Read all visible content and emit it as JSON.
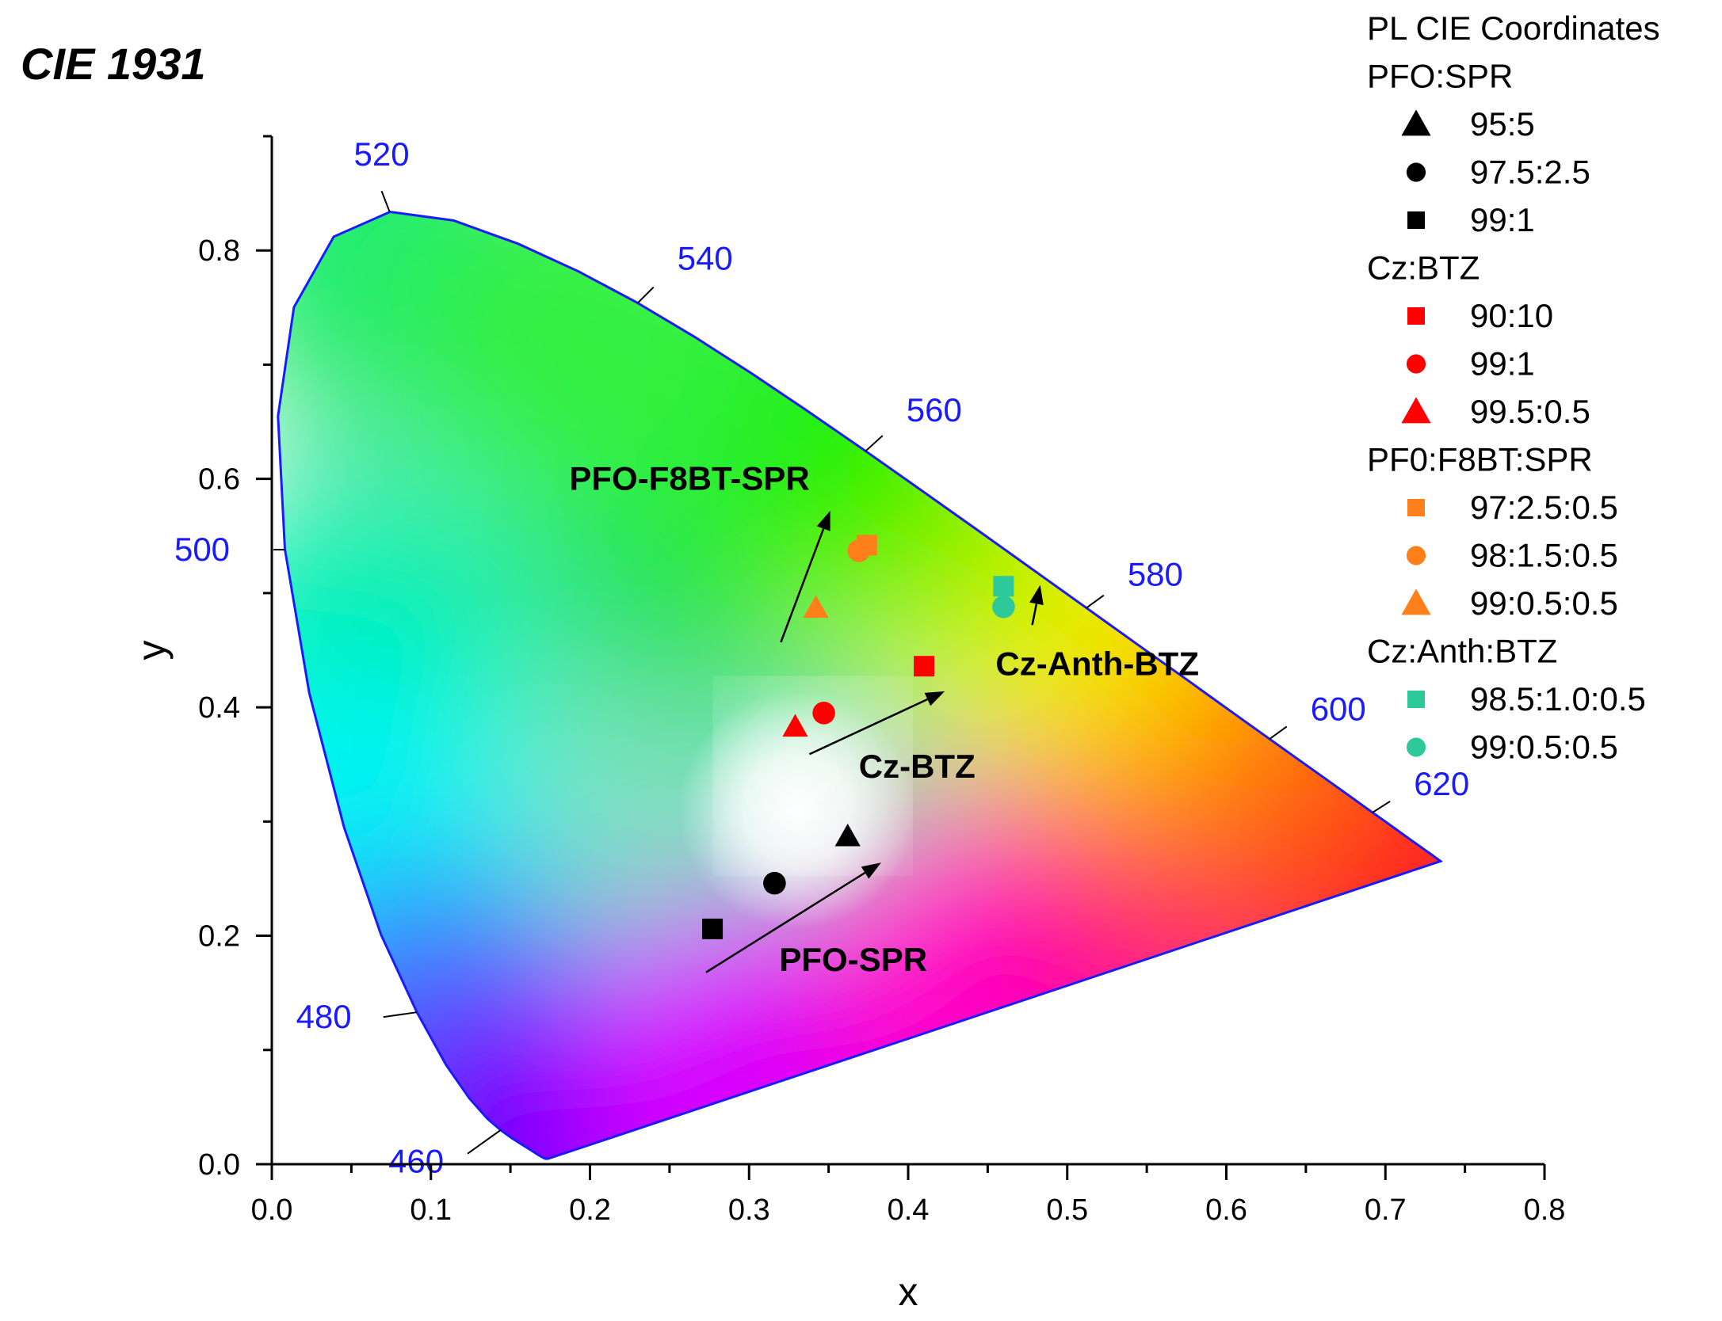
{
  "chart_data": {
    "type": "scatter",
    "title": "CIE 1931",
    "xlabel": "x",
    "ylabel": "y",
    "xlim": [
      0.0,
      0.8
    ],
    "ylim": [
      0.0,
      0.9
    ],
    "x_ticks": [
      "0.0",
      "0.1",
      "0.2",
      "0.3",
      "0.4",
      "0.5",
      "0.6",
      "0.7",
      "0.8"
    ],
    "y_ticks": [
      "0.0",
      "0.2",
      "0.4",
      "0.6",
      "0.8"
    ],
    "wavelength_labels": [
      {
        "label": "460",
        "x": 0.144,
        "y": 0.03
      },
      {
        "label": "480",
        "x": 0.091,
        "y": 0.133
      },
      {
        "label": "500",
        "x": 0.008,
        "y": 0.538
      },
      {
        "label": "520",
        "x": 0.074,
        "y": 0.834
      },
      {
        "label": "540",
        "x": 0.23,
        "y": 0.754
      },
      {
        "label": "560",
        "x": 0.373,
        "y": 0.624
      },
      {
        "label": "580",
        "x": 0.512,
        "y": 0.487
      },
      {
        "label": "600",
        "x": 0.627,
        "y": 0.372
      },
      {
        "label": "620",
        "x": 0.692,
        "y": 0.308
      }
    ],
    "legend": {
      "title": "PL CIE Coordinates",
      "position": "top-right",
      "groups": [
        {
          "name": "PFO:SPR",
          "color": "#000000",
          "entries": [
            {
              "label": "95:5",
              "marker": "triangle"
            },
            {
              "label": "97.5:2.5",
              "marker": "circle"
            },
            {
              "label": "99:1",
              "marker": "square"
            }
          ]
        },
        {
          "name": "Cz:BTZ",
          "color": "#ff0000",
          "entries": [
            {
              "label": "90:10",
              "marker": "square"
            },
            {
              "label": "99:1",
              "marker": "circle"
            },
            {
              "label": "99.5:0.5",
              "marker": "triangle"
            }
          ]
        },
        {
          "name": "PF0:F8BT:SPR",
          "color": "#ff7f1a",
          "entries": [
            {
              "label": "97:2.5:0.5",
              "marker": "square"
            },
            {
              "label": "98:1.5:0.5",
              "marker": "circle"
            },
            {
              "label": "99:0.5:0.5",
              "marker": "triangle"
            }
          ]
        },
        {
          "name": "Cz:Anth:BTZ",
          "color": "#2ec99a",
          "entries": [
            {
              "label": "98.5:1.0:0.5",
              "marker": "square"
            },
            {
              "label": "99:0.5:0.5",
              "marker": "circle"
            }
          ]
        }
      ]
    },
    "series": [
      {
        "name": "PFO:SPR 95:5",
        "marker": "triangle",
        "color": "#000000",
        "x": [
          0.362
        ],
        "y": [
          0.287
        ]
      },
      {
        "name": "PFO:SPR 97.5:2.5",
        "marker": "circle",
        "color": "#000000",
        "x": [
          0.316
        ],
        "y": [
          0.246
        ]
      },
      {
        "name": "PFO:SPR 99:1",
        "marker": "square",
        "color": "#000000",
        "x": [
          0.277
        ],
        "y": [
          0.206
        ]
      },
      {
        "name": "Cz:BTZ 90:10",
        "marker": "square",
        "color": "#ff0000",
        "x": [
          0.41
        ],
        "y": [
          0.436
        ]
      },
      {
        "name": "Cz:BTZ 99:1",
        "marker": "circle",
        "color": "#ff0000",
        "x": [
          0.347
        ],
        "y": [
          0.395
        ]
      },
      {
        "name": "Cz:BTZ 99.5:0.5",
        "marker": "triangle",
        "color": "#ff0000",
        "x": [
          0.329
        ],
        "y": [
          0.383
        ]
      },
      {
        "name": "PF0:F8BT:SPR 97:2.5:0.5",
        "marker": "square",
        "color": "#ff7f1a",
        "x": [
          0.374
        ],
        "y": [
          0.542
        ]
      },
      {
        "name": "PF0:F8BT:SPR 98:1.5:0.5",
        "marker": "circle",
        "color": "#ff7f1a",
        "x": [
          0.369
        ],
        "y": [
          0.537
        ]
      },
      {
        "name": "PF0:F8BT:SPR 99:0.5:0.5",
        "marker": "triangle",
        "color": "#ff7f1a",
        "x": [
          0.342
        ],
        "y": [
          0.487
        ]
      },
      {
        "name": "Cz:Anth:BTZ 98.5:1.0:0.5",
        "marker": "square",
        "color": "#2ec99a",
        "x": [
          0.46
        ],
        "y": [
          0.506
        ]
      },
      {
        "name": "Cz:Anth:BTZ 99:0.5:0.5",
        "marker": "circle",
        "color": "#2ec99a",
        "x": [
          0.46
        ],
        "y": [
          0.488
        ]
      }
    ],
    "annotations": [
      {
        "text": "PFO-F8BT-SPR",
        "x": 0.187,
        "y": 0.6,
        "arrow_from": [
          0.32,
          0.457
        ],
        "arrow_to": [
          0.351,
          0.572
        ]
      },
      {
        "text": "Cz-Anth-BTZ",
        "x": 0.455,
        "y": 0.438,
        "arrow_from": [
          0.478,
          0.472
        ],
        "arrow_to": [
          0.483,
          0.507
        ]
      },
      {
        "text": "Cz-BTZ",
        "x": 0.369,
        "y": 0.348,
        "arrow_from": [
          0.338,
          0.359
        ],
        "arrow_to": [
          0.423,
          0.414
        ]
      },
      {
        "text": "PFO-SPR",
        "x": 0.319,
        "y": 0.179,
        "arrow_from": [
          0.273,
          0.168
        ],
        "arrow_to": [
          0.383,
          0.264
        ]
      }
    ],
    "colors": {
      "locus": "#1a1aff",
      "wavelength_text": "#1a1aff"
    }
  }
}
